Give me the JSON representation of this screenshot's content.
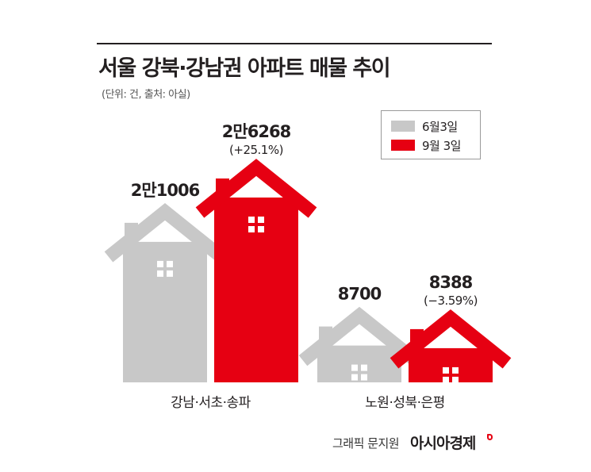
{
  "header": {
    "title": "서울 강북·강남권 아파트 매물 추이",
    "subtitle": "(단위: 건, 출처: 아실)"
  },
  "legend": [
    {
      "label": "6월3일",
      "color": "#c8c8c8"
    },
    {
      "label": "9월 3일",
      "color": "#e60012"
    }
  ],
  "chart_data": {
    "type": "bar",
    "title": "서울 강북·강남권 아파트 매물 추이",
    "unit": "(단위: 건, 출처: 아실)",
    "categories": [
      "강남·서초·송파",
      "노원·성북·은평"
    ],
    "series": [
      {
        "name": "6월3일",
        "color": "#c8c8c8",
        "values": [
          21006,
          8700
        ],
        "labels": [
          "2만1006",
          "8700"
        ]
      },
      {
        "name": "9월 3일",
        "color": "#e60012",
        "values": [
          26268,
          8388
        ],
        "labels": [
          "2만6268",
          "8388"
        ],
        "changes": [
          "(+25.1%)",
          "(−3.59%)"
        ]
      }
    ],
    "ylim": [
      0,
      26268
    ],
    "grid": false,
    "legend_position": "top-right"
  },
  "footer": {
    "credit": "그래픽 문지원",
    "brand": "아시아경제"
  }
}
